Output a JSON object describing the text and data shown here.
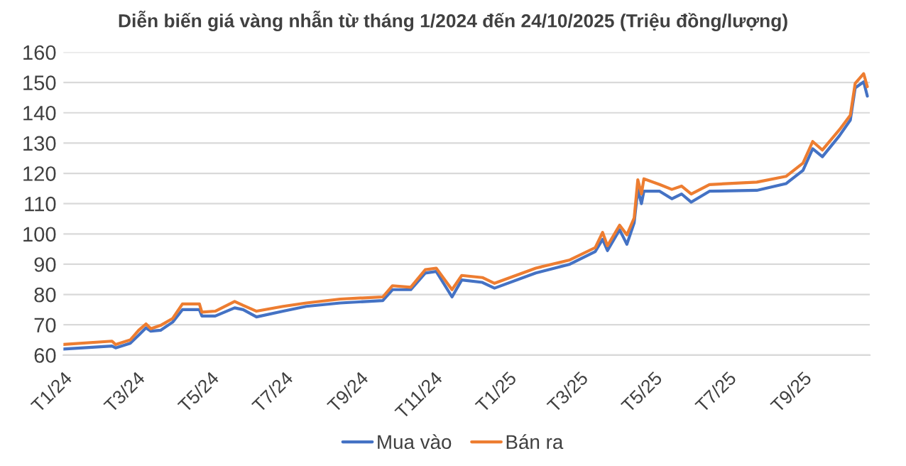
{
  "chart_data": {
    "type": "line",
    "title": "Diễn biến giá vàng nhẫn từ tháng 1/2024 đến 24/10/2025 (Triệu đồng/lượng)",
    "x": [
      "2024-01-01",
      "2024-02-10",
      "2024-02-13",
      "2024-02-25",
      "2024-03-03",
      "2024-03-09",
      "2024-03-13",
      "2024-03-21",
      "2024-03-31",
      "2024-04-08",
      "2024-04-22",
      "2024-04-24",
      "2024-05-05",
      "2024-05-21",
      "2024-05-28",
      "2024-06-08",
      "2024-06-30",
      "2024-07-19",
      "2024-08-16",
      "2024-09-20",
      "2024-09-28",
      "2024-10-13",
      "2024-10-25",
      "2024-11-03",
      "2024-11-16",
      "2024-11-24",
      "2024-12-11",
      "2024-12-21",
      "2025-01-24",
      "2025-02-21",
      "2025-03-14",
      "2025-03-20",
      "2025-03-24",
      "2025-04-03",
      "2025-04-09",
      "2025-04-15",
      "2025-04-18",
      "2025-04-21",
      "2025-04-23",
      "2025-05-06",
      "2025-05-16",
      "2025-05-24",
      "2025-06-01",
      "2025-06-16",
      "2025-07-25",
      "2025-08-18",
      "2025-09-01",
      "2025-09-09",
      "2025-09-17",
      "2025-10-01",
      "2025-10-10",
      "2025-10-14",
      "2025-10-21",
      "2025-10-24"
    ],
    "series": [
      {
        "name": "Mua vào",
        "color": "#4472c4",
        "values": [
          62.0,
          63.0,
          62.4,
          63.9,
          66.6,
          69.0,
          67.9,
          68.2,
          70.9,
          75.0,
          75.0,
          72.9,
          72.9,
          75.6,
          75.0,
          72.6,
          74.5,
          76.1,
          77.2,
          78.0,
          81.6,
          81.6,
          87.1,
          87.6,
          79.2,
          84.8,
          84.0,
          82.1,
          87.1,
          90.0,
          94.2,
          98.2,
          94.5,
          101.4,
          96.6,
          103.7,
          114.7,
          110.0,
          114.1,
          114.1,
          111.6,
          113.2,
          110.5,
          114.1,
          114.4,
          116.6,
          121.0,
          128.1,
          125.5,
          132.4,
          137.6,
          148.2,
          150.2,
          145.5
        ]
      },
      {
        "name": "Bán ra",
        "color": "#ed7d31",
        "values": [
          63.5,
          64.6,
          63.5,
          65.0,
          68.2,
          70.3,
          68.7,
          69.8,
          72.1,
          76.9,
          76.9,
          74.2,
          74.5,
          77.7,
          76.4,
          74.5,
          76.1,
          77.2,
          78.5,
          79.2,
          82.9,
          82.4,
          88.2,
          88.7,
          81.6,
          86.3,
          85.6,
          83.7,
          88.7,
          91.4,
          95.5,
          100.5,
          96.1,
          102.9,
          99.7,
          105.3,
          117.9,
          113.2,
          118.2,
          116.3,
          114.7,
          115.8,
          113.2,
          116.3,
          117.1,
          119.0,
          123.4,
          130.5,
          127.7,
          134.4,
          139.2,
          149.7,
          152.9,
          148.6
        ]
      }
    ],
    "xlim": [
      "2024-01-01",
      "2025-10-26"
    ],
    "xticks": [
      {
        "value": "2024-01-01",
        "label": "T1/24"
      },
      {
        "value": "2024-03-01",
        "label": "T3/24"
      },
      {
        "value": "2024-05-01",
        "label": "T5/24"
      },
      {
        "value": "2024-07-01",
        "label": "T7/24"
      },
      {
        "value": "2024-09-01",
        "label": "T9/24"
      },
      {
        "value": "2024-11-01",
        "label": "T11/24"
      },
      {
        "value": "2025-01-01",
        "label": "T1/25"
      },
      {
        "value": "2025-03-01",
        "label": "T3/25"
      },
      {
        "value": "2025-05-01",
        "label": "T5/25"
      },
      {
        "value": "2025-07-01",
        "label": "T7/25"
      },
      {
        "value": "2025-09-01",
        "label": "T9/25"
      }
    ],
    "ylim": [
      60,
      160
    ],
    "yticks": [
      60,
      70,
      80,
      90,
      100,
      110,
      120,
      130,
      140,
      150,
      160
    ],
    "grid": "y",
    "legend": "bottom",
    "line_style": "solid"
  }
}
